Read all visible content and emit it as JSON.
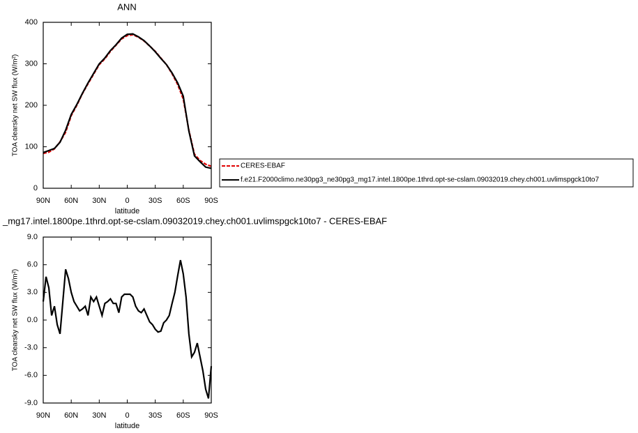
{
  "chart_data": [
    {
      "type": "line",
      "title": "ANN",
      "xlabel": "latitude",
      "ylabel": "TOA clearsky net SW flux (W/m²)",
      "x": [
        90,
        84,
        78,
        72,
        66,
        60,
        54,
        48,
        42,
        36,
        30,
        24,
        18,
        12,
        6,
        0,
        -6,
        -12,
        -18,
        -24,
        -30,
        -36,
        -42,
        -48,
        -54,
        -60,
        -66,
        -72,
        -78,
        -84,
        -90
      ],
      "series": [
        {
          "name": "CERES-EBAF",
          "color": "#e00000",
          "dashed": true,
          "values": [
            84,
            87,
            95,
            112,
            135,
            175,
            200,
            228,
            252,
            275,
            298,
            312,
            330,
            345,
            360,
            368,
            370,
            364,
            355,
            343,
            330,
            314,
            298,
            276,
            250,
            215,
            140,
            82,
            67,
            58,
            53
          ]
        },
        {
          "name": "f.e21.F2000climo.ne30pg3_ne30pg3_mg17.intel.1800pe.1thrd.opt-se-cslam.09032019.chey.ch001.uvlimspgck10to7",
          "color": "#000000",
          "dashed": false,
          "values": [
            86,
            91,
            96,
            111,
            140,
            178,
            202,
            229,
            254,
            277,
            300,
            314,
            332,
            346,
            362,
            371,
            372,
            365,
            356,
            343,
            329,
            313,
            298,
            278,
            254,
            222,
            138,
            78,
            64,
            51,
            48
          ]
        }
      ],
      "xlim": [
        90,
        -90
      ],
      "xticks": [
        {
          "value": 90,
          "label": "90N"
        },
        {
          "value": 60,
          "label": "60N"
        },
        {
          "value": 30,
          "label": "30N"
        },
        0,
        {
          "value": -30,
          "label": "30S"
        },
        {
          "value": -60,
          "label": "60S"
        },
        {
          "value": -90,
          "label": "90S"
        }
      ],
      "ylim": [
        0,
        400
      ],
      "yticks": [
        0,
        100,
        200,
        300,
        400
      ],
      "legend": "right"
    },
    {
      "type": "line",
      "title": "_mg17.intel.1800pe.1thrd.opt-se-cslam.09032019.chey.ch001.uvlimspgck10to7 - CERES-EBAF",
      "xlabel": "latitude",
      "ylabel": "TOA clearsky net SW flux (W/m²)",
      "x": [
        90,
        87,
        84,
        81,
        78,
        75,
        72,
        69,
        66,
        63,
        60,
        57,
        54,
        51,
        48,
        45,
        42,
        39,
        36,
        33,
        30,
        27,
        24,
        21,
        18,
        15,
        12,
        9,
        6,
        3,
        0,
        -3,
        -6,
        -9,
        -12,
        -15,
        -18,
        -21,
        -24,
        -27,
        -30,
        -33,
        -36,
        -39,
        -42,
        -45,
        -48,
        -51,
        -54,
        -57,
        -60,
        -63,
        -66,
        -69,
        -72,
        -75,
        -78,
        -81,
        -84,
        -87,
        -90
      ],
      "series": [
        {
          "name": null,
          "color": "#000000",
          "dashed": false,
          "values": [
            2.0,
            4.7,
            3.5,
            0.5,
            1.5,
            -0.5,
            -1.5,
            2.0,
            5.5,
            4.5,
            3.0,
            2.0,
            1.5,
            1.0,
            1.2,
            1.5,
            0.5,
            2.5,
            2.0,
            2.5,
            1.5,
            0.5,
            1.8,
            2.0,
            2.3,
            1.8,
            1.8,
            0.8,
            2.5,
            2.8,
            2.8,
            2.8,
            2.5,
            1.5,
            1.0,
            0.8,
            1.2,
            0.5,
            -0.2,
            -0.5,
            -1.0,
            -1.3,
            -1.2,
            -0.3,
            0.0,
            0.5,
            1.8,
            3.0,
            4.8,
            6.5,
            5.0,
            2.5,
            -1.5,
            -4.0,
            -3.5,
            -2.5,
            -4.0,
            -5.5,
            -7.5,
            -8.5,
            -5.0
          ]
        }
      ],
      "xlim": [
        90,
        -90
      ],
      "xticks": [
        {
          "value": 90,
          "label": "90N"
        },
        {
          "value": 60,
          "label": "60N"
        },
        {
          "value": 30,
          "label": "30N"
        },
        0,
        {
          "value": -30,
          "label": "30S"
        },
        {
          "value": -60,
          "label": "60S"
        },
        {
          "value": -90,
          "label": "90S"
        }
      ],
      "ylim": [
        -9,
        9
      ],
      "yticks": [
        {
          "value": 9,
          "label": "9.0"
        },
        {
          "value": 6,
          "label": "6.0"
        },
        {
          "value": 3,
          "label": "3.0"
        },
        {
          "value": 0,
          "label": "0.0"
        },
        {
          "value": -3,
          "label": "-3.0"
        },
        {
          "value": -6,
          "label": "-6.0"
        },
        {
          "value": -9,
          "label": "-9.0"
        }
      ]
    }
  ]
}
